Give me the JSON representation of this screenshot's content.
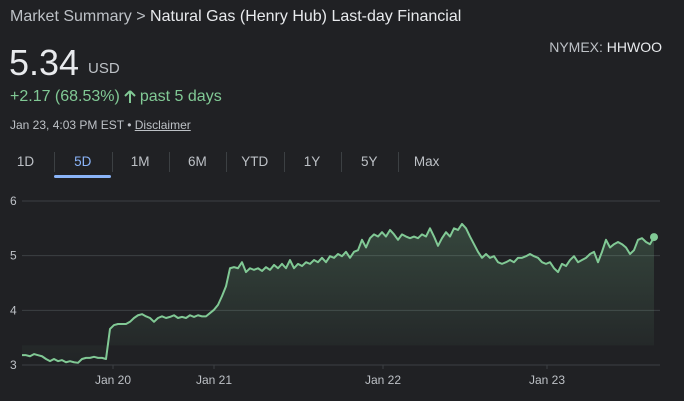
{
  "header": {
    "breadcrumb": "Market Summary",
    "separator": ">",
    "title": "Natural Gas (Henry Hub) Last-day Financial",
    "exchange": "NYMEX:",
    "symbol": "HHWOO",
    "price": "5.34",
    "currency": "USD",
    "change": "+2.17 (68.53%)",
    "period": "past 5 days",
    "timestamp": "Jan 23, 4:03 PM EST",
    "bullet": "•",
    "disclaimer": "Disclaimer"
  },
  "tabs": {
    "items": [
      "1D",
      "5D",
      "1M",
      "6M",
      "YTD",
      "1Y",
      "5Y",
      "Max"
    ],
    "selected": 1
  },
  "chart_data": {
    "type": "area",
    "color": "#81c995",
    "grid": true,
    "x": [
      0,
      1,
      2,
      3,
      4,
      5,
      6,
      7,
      8,
      9,
      10,
      11,
      12,
      13,
      14,
      15,
      16,
      17,
      18,
      19,
      20,
      21,
      22,
      23,
      24,
      25,
      26,
      27,
      28,
      29,
      30,
      31,
      32,
      33,
      34,
      35,
      36,
      37,
      38,
      39,
      40,
      41,
      42,
      43,
      44,
      45,
      46,
      47,
      48,
      49,
      50,
      51,
      52,
      53,
      54,
      55,
      56,
      57,
      58,
      59,
      60,
      61,
      62,
      63,
      64,
      65,
      66,
      67,
      68,
      69,
      70,
      71,
      72,
      73,
      74,
      75,
      76,
      77,
      78,
      79,
      80,
      81,
      82,
      83,
      84,
      85,
      86,
      87,
      88,
      89,
      90,
      91,
      92,
      93,
      94,
      95,
      96,
      97,
      98,
      99,
      100,
      101,
      102,
      103,
      104,
      105,
      106,
      107,
      108,
      109,
      110,
      111,
      112,
      113,
      114,
      115,
      116,
      117,
      118,
      119,
      120,
      121,
      122,
      123,
      124,
      125,
      126,
      127,
      128,
      129,
      130,
      131,
      132,
      133,
      134,
      135,
      136,
      137,
      138,
      139,
      140,
      141,
      142,
      143,
      144,
      145,
      146,
      147,
      148,
      149,
      150,
      151,
      152,
      153,
      154,
      155,
      156,
      157,
      158
    ],
    "values": [
      3.18,
      3.18,
      3.16,
      3.2,
      3.18,
      3.16,
      3.11,
      3.07,
      3.11,
      3.07,
      3.09,
      3.05,
      3.07,
      3.05,
      3.04,
      3.11,
      3.13,
      3.13,
      3.15,
      3.13,
      3.13,
      3.11,
      3.66,
      3.73,
      3.75,
      3.75,
      3.75,
      3.79,
      3.86,
      3.91,
      3.93,
      3.89,
      3.86,
      3.79,
      3.86,
      3.89,
      3.86,
      3.88,
      3.91,
      3.86,
      3.88,
      3.86,
      3.91,
      3.88,
      3.91,
      3.89,
      3.89,
      3.95,
      4.01,
      4.1,
      4.26,
      4.44,
      4.77,
      4.79,
      4.77,
      4.88,
      4.7,
      4.77,
      4.74,
      4.77,
      4.72,
      4.79,
      4.74,
      4.83,
      4.77,
      4.85,
      4.77,
      4.92,
      4.77,
      4.85,
      4.81,
      4.88,
      4.85,
      4.92,
      4.88,
      4.96,
      4.88,
      4.99,
      4.96,
      5.03,
      4.99,
      5.07,
      4.96,
      5.07,
      5.1,
      5.29,
      5.15,
      5.32,
      5.39,
      5.35,
      5.43,
      5.35,
      5.47,
      5.39,
      5.29,
      5.39,
      5.35,
      5.32,
      5.35,
      5.32,
      5.39,
      5.35,
      5.5,
      5.35,
      5.18,
      5.32,
      5.43,
      5.35,
      5.5,
      5.47,
      5.58,
      5.5,
      5.35,
      5.21,
      5.07,
      4.96,
      5.03,
      4.96,
      4.99,
      4.88,
      4.85,
      4.88,
      4.92,
      4.88,
      4.96,
      4.96,
      4.99,
      5.03,
      4.99,
      4.96,
      4.88,
      4.85,
      4.88,
      4.77,
      4.7,
      4.85,
      4.81,
      4.92,
      4.99,
      4.88,
      4.92,
      4.96,
      5.03,
      5.07,
      4.88,
      5.07,
      5.29,
      5.15,
      5.21,
      5.25,
      5.21,
      5.15,
      5.03,
      5.1,
      5.29,
      5.32,
      5.25,
      5.21,
      5.34
    ],
    "xlim": [
      0,
      158
    ],
    "xticks": [
      {
        "value": 22.75,
        "label": "Jan 20"
      },
      {
        "value": 48,
        "label": "Jan 21"
      },
      {
        "value": 90.25,
        "label": "Jan 22"
      },
      {
        "value": 131.25,
        "label": "Jan 23"
      }
    ],
    "ylim": [
      3,
      6
    ],
    "yticks": [
      3,
      4,
      5,
      6
    ]
  }
}
